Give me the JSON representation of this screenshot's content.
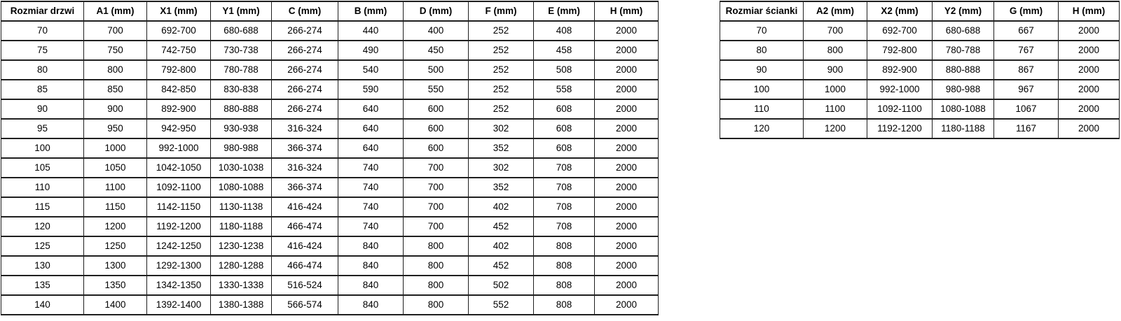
{
  "colors": {
    "background": "#ffffff",
    "border": "#1f1f1f",
    "text": "#000000"
  },
  "doors_table": {
    "name": "Rozmiar drzwi",
    "headers": [
      "Rozmiar drzwi",
      "A1 (mm)",
      "X1 (mm)",
      "Y1 (mm)",
      "C (mm)",
      "B (mm)",
      "D (mm)",
      "F (mm)",
      "E (mm)",
      "H (mm)"
    ],
    "rows": [
      [
        "70",
        "700",
        "692-700",
        "680-688",
        "266-274",
        "440",
        "400",
        "252",
        "408",
        "2000"
      ],
      [
        "75",
        "750",
        "742-750",
        "730-738",
        "266-274",
        "490",
        "450",
        "252",
        "458",
        "2000"
      ],
      [
        "80",
        "800",
        "792-800",
        "780-788",
        "266-274",
        "540",
        "500",
        "252",
        "508",
        "2000"
      ],
      [
        "85",
        "850",
        "842-850",
        "830-838",
        "266-274",
        "590",
        "550",
        "252",
        "558",
        "2000"
      ],
      [
        "90",
        "900",
        "892-900",
        "880-888",
        "266-274",
        "640",
        "600",
        "252",
        "608",
        "2000"
      ],
      [
        "95",
        "950",
        "942-950",
        "930-938",
        "316-324",
        "640",
        "600",
        "302",
        "608",
        "2000"
      ],
      [
        "100",
        "1000",
        "992-1000",
        "980-988",
        "366-374",
        "640",
        "600",
        "352",
        "608",
        "2000"
      ],
      [
        "105",
        "1050",
        "1042-1050",
        "1030-1038",
        "316-324",
        "740",
        "700",
        "302",
        "708",
        "2000"
      ],
      [
        "110",
        "1100",
        "1092-1100",
        "1080-1088",
        "366-374",
        "740",
        "700",
        "352",
        "708",
        "2000"
      ],
      [
        "115",
        "1150",
        "1142-1150",
        "1130-1138",
        "416-424",
        "740",
        "700",
        "402",
        "708",
        "2000"
      ],
      [
        "120",
        "1200",
        "1192-1200",
        "1180-1188",
        "466-474",
        "740",
        "700",
        "452",
        "708",
        "2000"
      ],
      [
        "125",
        "1250",
        "1242-1250",
        "1230-1238",
        "416-424",
        "840",
        "800",
        "402",
        "808",
        "2000"
      ],
      [
        "130",
        "1300",
        "1292-1300",
        "1280-1288",
        "466-474",
        "840",
        "800",
        "452",
        "808",
        "2000"
      ],
      [
        "135",
        "1350",
        "1342-1350",
        "1330-1338",
        "516-524",
        "840",
        "800",
        "502",
        "808",
        "2000"
      ],
      [
        "140",
        "1400",
        "1392-1400",
        "1380-1388",
        "566-574",
        "840",
        "800",
        "552",
        "808",
        "2000"
      ]
    ]
  },
  "walls_table": {
    "name": "Rozmiar ścianki",
    "headers": [
      "Rozmiar ścianki",
      "A2 (mm)",
      "X2 (mm)",
      "Y2 (mm)",
      "G (mm)",
      "H (mm)"
    ],
    "rows": [
      [
        "70",
        "700",
        "692-700",
        "680-688",
        "667",
        "2000"
      ],
      [
        "80",
        "800",
        "792-800",
        "780-788",
        "767",
        "2000"
      ],
      [
        "90",
        "900",
        "892-900",
        "880-888",
        "867",
        "2000"
      ],
      [
        "100",
        "1000",
        "992-1000",
        "980-988",
        "967",
        "2000"
      ],
      [
        "110",
        "1100",
        "1092-1100",
        "1080-1088",
        "1067",
        "2000"
      ],
      [
        "120",
        "1200",
        "1192-1200",
        "1180-1188",
        "1167",
        "2000"
      ]
    ]
  }
}
